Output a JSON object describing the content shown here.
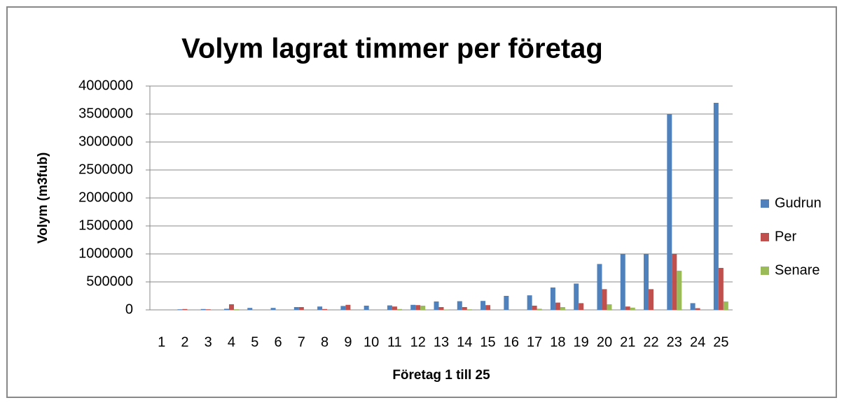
{
  "chart_data": {
    "type": "bar",
    "title": "Volym lagrat timmer per företag",
    "x_label": "Företag 1 till 25",
    "y_label": "Volym (m3fub)",
    "categories": [
      "1",
      "2",
      "3",
      "4",
      "5",
      "6",
      "7",
      "8",
      "9",
      "10",
      "11",
      "12",
      "13",
      "14",
      "15",
      "16",
      "17",
      "18",
      "19",
      "20",
      "21",
      "22",
      "23",
      "24",
      "25"
    ],
    "series": [
      {
        "name": "Gudrun",
        "color": "#4f81bd",
        "values": [
          0,
          10000,
          15000,
          20000,
          35000,
          35000,
          50000,
          60000,
          70000,
          75000,
          80000,
          90000,
          150000,
          155000,
          160000,
          250000,
          260000,
          400000,
          470000,
          820000,
          1000000,
          1000000,
          3500000,
          120000,
          3700000
        ]
      },
      {
        "name": "Per",
        "color": "#c0504d",
        "values": [
          0,
          15000,
          10000,
          100000,
          0,
          0,
          50000,
          15000,
          90000,
          0,
          60000,
          85000,
          50000,
          50000,
          85000,
          0,
          75000,
          130000,
          120000,
          370000,
          60000,
          370000,
          1000000,
          30000,
          750000
        ]
      },
      {
        "name": "Senare",
        "color": "#9bbb59",
        "values": [
          0,
          0,
          0,
          10000,
          0,
          0,
          0,
          0,
          0,
          0,
          15000,
          75000,
          5000,
          10000,
          0,
          0,
          20000,
          50000,
          0,
          100000,
          40000,
          0,
          700000,
          0,
          150000
        ]
      }
    ],
    "ylim": [
      0,
      4000000
    ],
    "yticks": [
      0,
      500000,
      1000000,
      1500000,
      2000000,
      2500000,
      3000000,
      3500000,
      4000000
    ],
    "grid": true,
    "legend": "right"
  }
}
